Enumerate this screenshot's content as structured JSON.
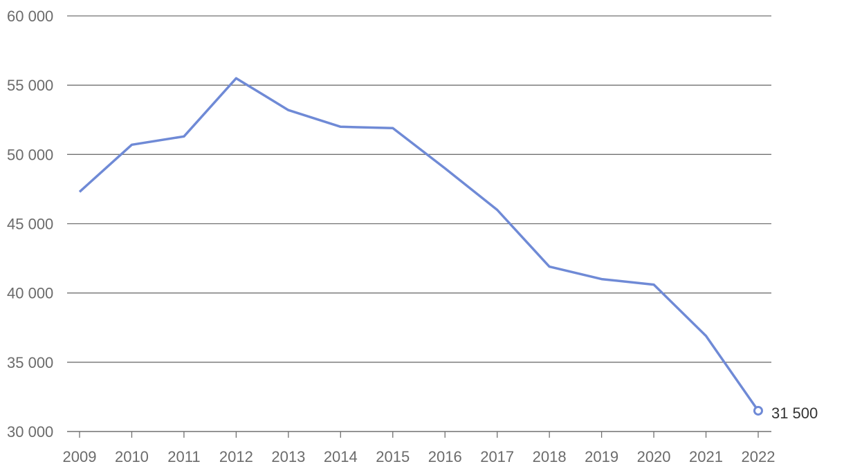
{
  "chart_data": {
    "type": "line",
    "title": "",
    "xlabel": "",
    "ylabel": "",
    "x": [
      "2009",
      "2010",
      "2011",
      "2012",
      "2013",
      "2014",
      "2015",
      "2016",
      "2017",
      "2018",
      "2019",
      "2020",
      "2021",
      "2022"
    ],
    "series": [
      {
        "values": [
          47300,
          50700,
          51300,
          55500,
          53200,
          52000,
          51900,
          49000,
          46000,
          41900,
          41000,
          40600,
          36900,
          31500
        ]
      }
    ],
    "ylim": [
      30000,
      60000
    ],
    "y_ticks": [
      30000,
      35000,
      40000,
      45000,
      50000,
      55000,
      60000
    ],
    "y_tick_labels": [
      "30 000",
      "35 000",
      "40 000",
      "45 000",
      "50 000",
      "55 000",
      "60 000"
    ],
    "end_label": "31 500",
    "grid": "horizontal",
    "colors": {
      "line": "#6f8ad6",
      "grid": "#707070",
      "tick_text": "#6b6b6b",
      "end_label_text": "#333333"
    }
  }
}
